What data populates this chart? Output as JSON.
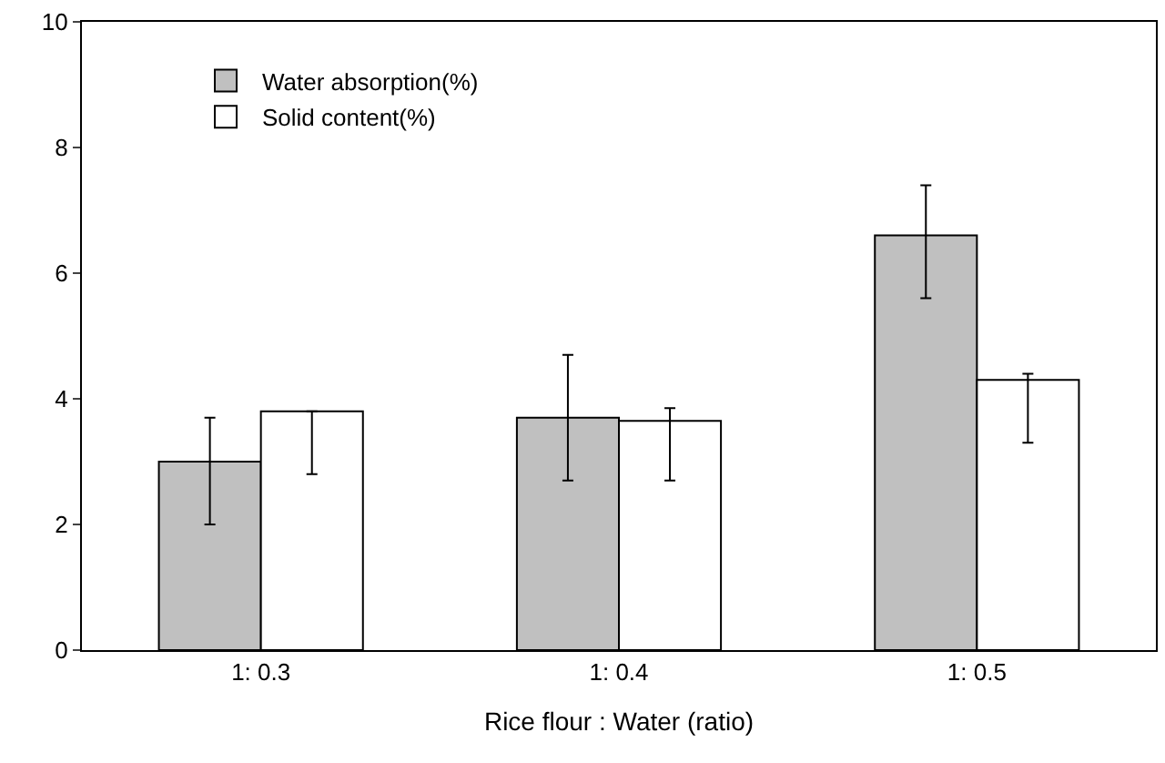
{
  "chart_data": {
    "type": "bar",
    "xlabel": "Rice flour : Water (ratio)",
    "categories": [
      "1: 0.3",
      "1: 0.4",
      "1: 0.5"
    ],
    "series": [
      {
        "name": "Water absorption(%)",
        "color": "#c0c0c0",
        "values": [
          3.0,
          3.7,
          6.6
        ],
        "errors": [
          [
            2.0,
            3.7
          ],
          [
            2.7,
            4.7
          ],
          [
            5.6,
            7.4
          ]
        ]
      },
      {
        "name": "Solid content(%)",
        "color": "#ffffff",
        "values": [
          3.8,
          3.65,
          4.3
        ],
        "errors": [
          [
            2.8,
            3.8
          ],
          [
            2.7,
            3.85
          ],
          [
            3.3,
            4.4
          ]
        ]
      }
    ],
    "ylim": [
      0,
      10
    ],
    "yticks": [
      0,
      2,
      4,
      6,
      8,
      10
    ],
    "grid": false,
    "legend": "top left"
  }
}
